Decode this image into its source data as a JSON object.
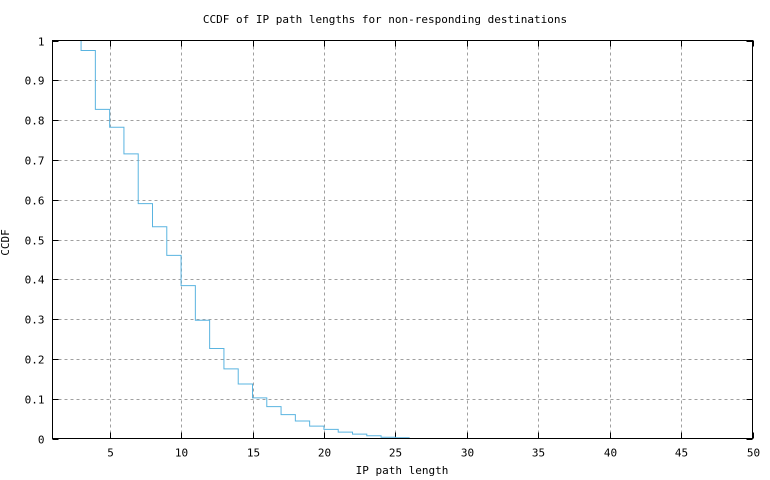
{
  "chart_data": {
    "type": "line",
    "style": "step",
    "title": "CCDF of IP path lengths for non-responding destinations",
    "xlabel": "IP path length",
    "ylabel": "CCDF",
    "xlim": [
      1,
      50
    ],
    "ylim": [
      0,
      1
    ],
    "grid": true,
    "legend": null,
    "x_ticks": [
      5,
      10,
      15,
      20,
      25,
      30,
      35,
      40,
      45,
      50
    ],
    "x_tick_labels": [
      "5",
      "10",
      "15",
      "20",
      "25",
      "30",
      "35",
      "40",
      "45",
      "50"
    ],
    "y_ticks": [
      0,
      0.1,
      0.2,
      0.3,
      0.4,
      0.5,
      0.6,
      0.7,
      0.8,
      0.9,
      1
    ],
    "y_tick_labels": [
      "0",
      "0.1",
      "0.2",
      "0.3",
      "0.4",
      "0.5",
      "0.6",
      "0.7",
      "0.8",
      "0.9",
      "1"
    ],
    "series": [
      {
        "name": "CCDF",
        "color": "#5ab4e0",
        "x": [
          2,
          3,
          4,
          5,
          6,
          7,
          8,
          9,
          10,
          11,
          12,
          13,
          14,
          15,
          16,
          17,
          18,
          19,
          20,
          21,
          22,
          23,
          24,
          25,
          26
        ],
        "values": [
          1.0,
          0.975,
          0.827,
          0.782,
          0.715,
          0.59,
          0.532,
          0.46,
          0.384,
          0.297,
          0.226,
          0.175,
          0.137,
          0.102,
          0.08,
          0.06,
          0.044,
          0.031,
          0.023,
          0.016,
          0.011,
          0.007,
          0.003,
          0.002,
          0.002
        ]
      }
    ]
  }
}
